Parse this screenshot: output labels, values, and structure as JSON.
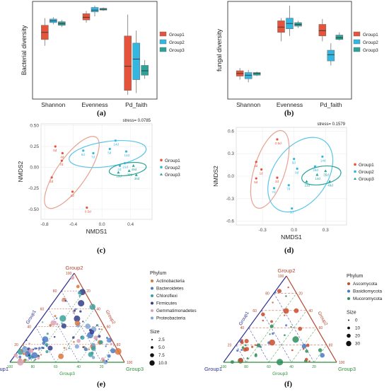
{
  "figure": {
    "panel_labels": [
      "(a)",
      "(b)",
      "(c)",
      "(d)",
      "(e)",
      "(f)"
    ],
    "colors": {
      "group1": "#e5543a",
      "group2": "#33b7e0",
      "group3": "#2aa39a",
      "ellipse1": "#e8a291",
      "ellipse2": "#5bc6e8",
      "ellipse3": "#2aa39a"
    }
  },
  "chart_data": [
    {
      "id": "a",
      "type": "box",
      "ylabel": "Bacterial diversity",
      "categories": [
        "Shannon",
        "Evenness",
        "Pd_faith"
      ],
      "legend": [
        "Group1",
        "Group2",
        "Group3"
      ],
      "legend_position": "right",
      "boxes": [
        [
          {
            "q1": 0.62,
            "med": 0.7,
            "q3": 0.78,
            "lo": 0.55,
            "hi": 0.86
          },
          {
            "q1": 0.81,
            "med": 0.83,
            "q3": 0.85,
            "lo": 0.79,
            "hi": 0.87
          },
          {
            "q1": 0.78,
            "med": 0.8,
            "q3": 0.82,
            "lo": 0.76,
            "hi": 0.84
          }
        ],
        [
          {
            "q1": 0.84,
            "med": 0.87,
            "q3": 0.91,
            "lo": 0.81,
            "hi": 0.94
          },
          {
            "q1": 0.93,
            "med": 0.95,
            "q3": 0.98,
            "lo": 0.88,
            "hi": 1.0
          },
          {
            "q1": 0.95,
            "med": 0.96,
            "q3": 0.97,
            "lo": 0.94,
            "hi": 0.98
          }
        ],
        [
          {
            "q1": 0.05,
            "med": 0.32,
            "q3": 0.66,
            "lo": 0.0,
            "hi": 0.9
          },
          {
            "q1": 0.17,
            "med": 0.4,
            "q3": 0.58,
            "lo": 0.02,
            "hi": 0.72
          },
          {
            "q1": 0.22,
            "med": 0.27,
            "q3": 0.33,
            "lo": 0.18,
            "hi": 0.39
          }
        ]
      ]
    },
    {
      "id": "b",
      "type": "box",
      "ylabel": "fungal diversity",
      "categories": [
        "Shannon",
        "Evenness",
        "Pd_faith"
      ],
      "legend": [
        "Group1",
        "Group2",
        "Group3"
      ],
      "legend_position": "right",
      "boxes": [
        [
          {
            "q1": 0.21,
            "med": 0.24,
            "q3": 0.27,
            "lo": 0.17,
            "hi": 0.3
          },
          {
            "q1": 0.18,
            "med": 0.22,
            "q3": 0.25,
            "lo": 0.14,
            "hi": 0.28
          },
          {
            "q1": 0.22,
            "med": 0.24,
            "q3": 0.25,
            "lo": 0.21,
            "hi": 0.26
          }
        ],
        [
          {
            "q1": 0.7,
            "med": 0.76,
            "q3": 0.83,
            "lo": 0.6,
            "hi": 0.86
          },
          {
            "q1": 0.74,
            "med": 0.8,
            "q3": 0.86,
            "lo": 0.66,
            "hi": 1.0
          },
          {
            "q1": 0.77,
            "med": 0.79,
            "q3": 0.81,
            "lo": 0.75,
            "hi": 0.83
          }
        ],
        [
          {
            "q1": 0.66,
            "med": 0.72,
            "q3": 0.79,
            "lo": 0.6,
            "hi": 0.85
          },
          {
            "q1": 0.38,
            "med": 0.45,
            "q3": 0.5,
            "lo": 0.33,
            "hi": 0.58
          },
          {
            "q1": 0.62,
            "med": 0.64,
            "q3": 0.67,
            "lo": 0.61,
            "hi": 0.7
          }
        ]
      ]
    },
    {
      "id": "c",
      "type": "scatter",
      "xlabel": "NMDS1",
      "ylabel": "NMDS2",
      "stress": "stress= 0.0785",
      "xlim": [
        -0.85,
        0.7
      ],
      "ylim": [
        -0.62,
        0.52
      ],
      "xticks": [
        "-0.8",
        "-0.4",
        "0.0",
        "0.4"
      ],
      "xtick_values": [
        -0.8,
        -0.4,
        0.0,
        0.4
      ],
      "yticks": [
        "0.50",
        "0.25",
        "0.00",
        "-0.25",
        "-0.50"
      ],
      "ytick_values": [
        0.5,
        0.25,
        0.0,
        -0.25,
        -0.5
      ],
      "legend": [
        "Group1",
        "Group2",
        "Group3"
      ],
      "legend_position": "right",
      "points": [
        {
          "g": 1,
          "x": -0.65,
          "y": 0.25,
          "label": "5d"
        },
        {
          "g": 1,
          "x": -0.56,
          "y": 0.08,
          "label": "7d"
        },
        {
          "g": 1,
          "x": -0.55,
          "y": 0.17,
          "label": "4d"
        },
        {
          "g": 1,
          "x": -0.7,
          "y": -0.12,
          "label": "2d"
        },
        {
          "g": 1,
          "x": -0.41,
          "y": -0.29,
          "label": "1d"
        },
        {
          "g": 1,
          "x": -0.21,
          "y": -0.48,
          "label": "0.5d"
        },
        {
          "g": 2,
          "x": -0.26,
          "y": 0.2,
          "label": "5d"
        },
        {
          "g": 2,
          "x": -0.12,
          "y": 0.17,
          "label": "7d"
        },
        {
          "g": 2,
          "x": 0.11,
          "y": 0.22,
          "label": "5d"
        },
        {
          "g": 2,
          "x": 0.19,
          "y": 0.32,
          "label": "14d"
        },
        {
          "g": 2,
          "x": 0.34,
          "y": 0.19,
          "label": "14d"
        },
        {
          "g": 2,
          "x": 0.25,
          "y": 0.02,
          "label": "2d"
        },
        {
          "g": 2,
          "x": 0.32,
          "y": 0.05,
          "label": "21d"
        },
        {
          "g": 3,
          "x": 0.44,
          "y": 0.02,
          "label": "49d"
        },
        {
          "g": 3,
          "x": 0.38,
          "y": -0.04,
          "label": "28d"
        },
        {
          "g": 3,
          "x": 0.48,
          "y": -0.09,
          "label": "35d"
        },
        {
          "g": 3,
          "x": 0.23,
          "y": -0.06,
          "label": "28d"
        }
      ],
      "ellipses": [
        {
          "g": 1,
          "cx": -0.42,
          "cy": -0.06,
          "rx": 0.55,
          "ry": 0.19,
          "rot": -55
        },
        {
          "g": 2,
          "cx": 0.08,
          "cy": 0.16,
          "rx": 0.5,
          "ry": 0.16,
          "rot": -8
        },
        {
          "g": 3,
          "cx": 0.36,
          "cy": -0.02,
          "rx": 0.24,
          "ry": 0.08,
          "rot": -8
        }
      ]
    },
    {
      "id": "d",
      "type": "scatter",
      "xlabel": "NMDS1",
      "ylabel": "NMDS2",
      "stress": "stress= 0.1579",
      "xlim": [
        -0.55,
        0.5
      ],
      "ylim": [
        -0.65,
        0.65
      ],
      "xticks": [
        "-0.3",
        "0.0",
        "0.3"
      ],
      "xtick_values": [
        -0.3,
        0.0,
        0.3
      ],
      "yticks": [
        "0.6",
        "0.3",
        "0.0",
        "-0.3",
        "-0.6"
      ],
      "ytick_values": [
        0.6,
        0.3,
        0.0,
        -0.3,
        -0.6
      ],
      "legend": [
        "Group1",
        "Group2",
        "Group3"
      ],
      "legend_position": "right",
      "points": [
        {
          "g": 1,
          "x": -0.16,
          "y": 0.49,
          "label": "0.5d"
        },
        {
          "g": 1,
          "x": -0.36,
          "y": 0.19,
          "label": "4d"
        },
        {
          "g": 1,
          "x": -0.31,
          "y": 0.09,
          "label": "1d"
        },
        {
          "g": 1,
          "x": -0.36,
          "y": -0.03,
          "label": "5d"
        },
        {
          "g": 1,
          "x": -0.16,
          "y": -0.02,
          "label": "2d"
        },
        {
          "g": 2,
          "x": -0.19,
          "y": -0.16,
          "label": "7d"
        },
        {
          "g": 2,
          "x": -0.05,
          "y": -0.12,
          "label": "7d"
        },
        {
          "g": 2,
          "x": 0.0,
          "y": 0.23,
          "label": "5d"
        },
        {
          "g": 2,
          "x": 0.03,
          "y": 0.1,
          "label": "9d"
        },
        {
          "g": 2,
          "x": 0.27,
          "y": 0.26,
          "label": "14d"
        },
        {
          "g": 2,
          "x": 0.2,
          "y": 0.13,
          "label": "28d"
        },
        {
          "g": 2,
          "x": -0.02,
          "y": -0.43,
          "label": "3d"
        },
        {
          "g": 3,
          "x": 0.3,
          "y": 0.07,
          "label": "35d"
        },
        {
          "g": 3,
          "x": 0.22,
          "y": 0.02,
          "label": "14d"
        },
        {
          "g": 3,
          "x": 0.34,
          "y": -0.07,
          "label": "49d"
        },
        {
          "g": 3,
          "x": 0.12,
          "y": -0.07,
          "label": "21d"
        }
      ],
      "ellipses": [
        {
          "g": 1,
          "cx": -0.23,
          "cy": 0.09,
          "rx": 0.45,
          "ry": 0.17,
          "rot": -72
        },
        {
          "g": 2,
          "cx": 0.06,
          "cy": 0.02,
          "rx": 0.46,
          "ry": 0.3,
          "rot": -55
        },
        {
          "g": 3,
          "cx": 0.26,
          "cy": 0.01,
          "rx": 0.22,
          "ry": 0.1,
          "rot": -10
        }
      ]
    },
    {
      "id": "e",
      "type": "ternary",
      "vertices": [
        "Group1",
        "Group2",
        "Group3"
      ],
      "ticks": [
        "20",
        "40",
        "60",
        "80",
        "100"
      ],
      "legend_title": "Phylum",
      "legend": [
        {
          "name": "Actinobacteria",
          "color": "#d9773e"
        },
        {
          "name": "Bacteroidetes",
          "color": "#4a78c2"
        },
        {
          "name": "Chloroflexi",
          "color": "#3aa1a0"
        },
        {
          "name": "Firmicutes",
          "color": "#333d8a"
        },
        {
          "name": "Gemmatimonadetes",
          "color": "#d9a3b6"
        },
        {
          "name": "Proteobacteria",
          "color": "#7fa4d6"
        }
      ],
      "size_title": "Size",
      "size_legend": [
        "2.5",
        "5.0",
        "7.5",
        "10.0"
      ],
      "seed": 7,
      "n_points": 130
    },
    {
      "id": "f",
      "type": "ternary",
      "vertices": [
        "Group1",
        "Group2",
        "Group3"
      ],
      "ticks": [
        "20",
        "40",
        "60",
        "80",
        "100"
      ],
      "legend_title": "Phylum",
      "legend": [
        {
          "name": "Ascomycota",
          "color": "#c94c2e"
        },
        {
          "name": "Basidiomycota",
          "color": "#4a78c2"
        },
        {
          "name": "Mucoromycota",
          "color": "#2e8f5a"
        }
      ],
      "size_title": "Size",
      "size_legend": [
        "0",
        "10",
        "20",
        "30"
      ],
      "seed": 13,
      "n_points": 55
    }
  ]
}
